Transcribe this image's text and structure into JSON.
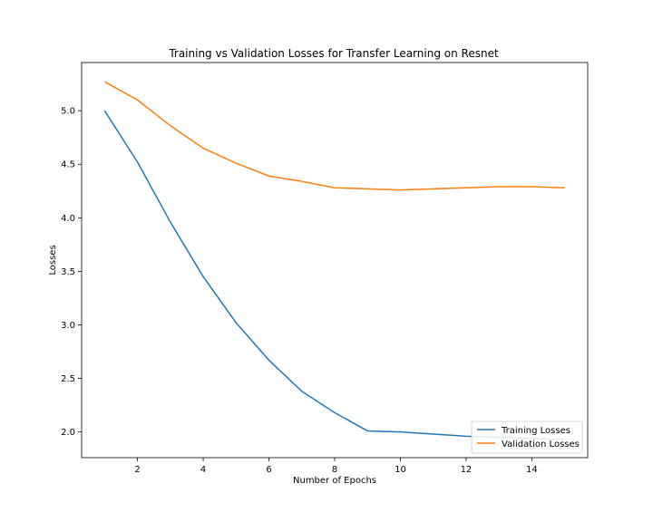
{
  "chart_data": {
    "type": "line",
    "title": "Training vs Validation Losses for Transfer Learning on Resnet",
    "xlabel": "Number of Epochs",
    "ylabel": "Losses",
    "x": [
      1,
      2,
      3,
      4,
      5,
      6,
      7,
      8,
      9,
      10,
      11,
      12,
      13,
      14,
      15
    ],
    "xlim": [
      0.3,
      15.7
    ],
    "ylim": [
      1.76,
      5.45
    ],
    "xticks": [
      2,
      4,
      6,
      8,
      10,
      12,
      14
    ],
    "yticks": [
      2.0,
      2.5,
      3.0,
      3.5,
      4.0,
      4.5,
      5.0
    ],
    "xtick_labels": [
      "2",
      "4",
      "6",
      "8",
      "10",
      "12",
      "14"
    ],
    "ytick_labels": [
      "2.0",
      "2.5",
      "3.0",
      "3.5",
      "4.0",
      "4.5",
      "5.0"
    ],
    "grid": false,
    "legend_position": "lower-right",
    "series": [
      {
        "name": "Training Losses",
        "color": "#1f77b4",
        "values": [
          5.0,
          4.52,
          3.96,
          3.45,
          3.02,
          2.67,
          2.38,
          2.18,
          2.01,
          2.0,
          1.98,
          1.96,
          1.95,
          1.94,
          1.93
        ]
      },
      {
        "name": "Validation Losses",
        "color": "#ff7f0e",
        "values": [
          5.27,
          5.1,
          4.86,
          4.65,
          4.51,
          4.39,
          4.34,
          4.28,
          4.27,
          4.26,
          4.27,
          4.28,
          4.29,
          4.29,
          4.28
        ]
      }
    ]
  }
}
